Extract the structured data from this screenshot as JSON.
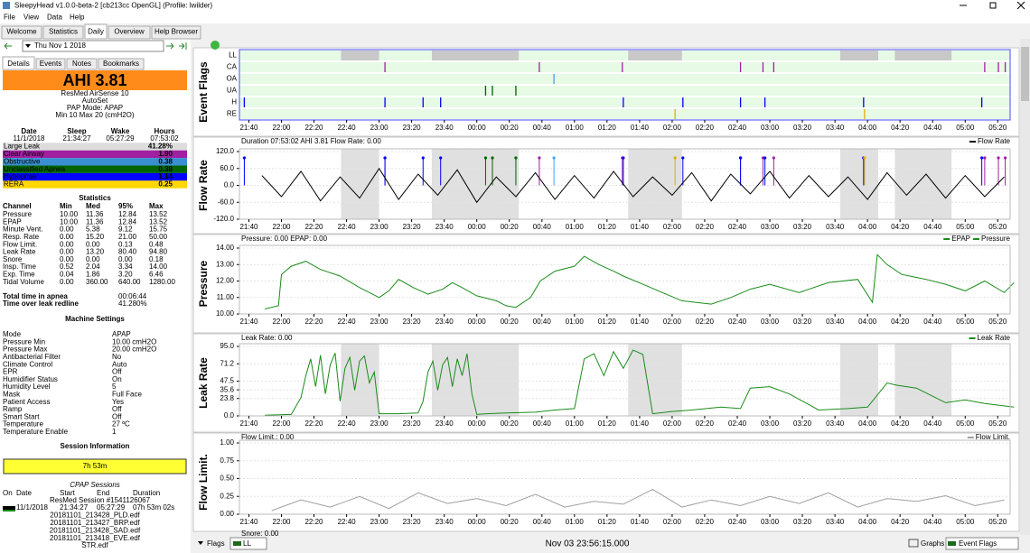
{
  "window": {
    "title": "SleepyHead v1.0.0-beta-2 [cb213cc OpenGL] (Profile: lwilder)",
    "menu": [
      "File",
      "View",
      "Data",
      "Help"
    ],
    "tabs": [
      "Welcome",
      "Statistics",
      "Daily",
      "Overview",
      "Help Browser"
    ]
  },
  "nav": {
    "date": "Thu Nov 1 2018"
  },
  "details": {
    "tabs": [
      "Details",
      "Events",
      "Notes",
      "Bookmarks"
    ],
    "ahi": "AHI 3.81",
    "machine": [
      "ResMed AirSense 10",
      "AutoSet",
      "PAP Mode: APAP",
      "Min 10 Max 20 (cmH2O)"
    ],
    "sleep_table": {
      "header": [
        "Date",
        "Sleep",
        "Wake",
        "Hours"
      ],
      "row": [
        "11/1/2018",
        "21:34:27",
        "05:27:29",
        "07:53:02"
      ]
    },
    "indices": [
      {
        "name": "Large Leak",
        "value": "41.28%",
        "color": "#dcdcdc",
        "text_color": "#000000"
      },
      {
        "name": "Clear Airway",
        "value": "1.90",
        "color": "#a020a0",
        "text_color": "#ffffff"
      },
      {
        "name": "Obstructive",
        "value": "0.38",
        "color": "#3a8fd0",
        "text_color": "#ffffff"
      },
      {
        "name": "Unclassified Apnea",
        "value": "0.38",
        "color": "#006400",
        "text_color": "#ffffff"
      },
      {
        "name": "Hypopnea",
        "value": "1.14",
        "color": "#0000ff",
        "text_color": "#ffffff"
      },
      {
        "name": "RERA",
        "value": "0.25",
        "color": "#ffd700",
        "text_color": "#000000"
      }
    ],
    "statistics": {
      "title": "Statistics",
      "header": [
        "Channel",
        "Min",
        "Med",
        "95%",
        "Max"
      ],
      "rows": [
        [
          "Pressure",
          "10.00",
          "11.36",
          "12.84",
          "13.52"
        ],
        [
          "EPAP",
          "10.00",
          "11.36",
          "12.84",
          "13.52"
        ],
        [
          "Minute Vent.",
          "0.00",
          "5.38",
          "9.12",
          "15.75"
        ],
        [
          "Resp. Rate",
          "0.00",
          "15.20",
          "21.00",
          "50.00"
        ],
        [
          "Flow Limit.",
          "0.00",
          "0.00",
          "0.13",
          "0.48"
        ],
        [
          "Leak Rate",
          "0.00",
          "13.20",
          "80.40",
          "94.80"
        ],
        [
          "Snore",
          "0.00",
          "0.00",
          "0.00",
          "0.18"
        ],
        [
          "Insp. Time",
          "0.52",
          "2.04",
          "3.34",
          "14.00"
        ],
        [
          "Exp. Time",
          "0.04",
          "1.86",
          "3.20",
          "6.46"
        ],
        [
          "Tidal Volume",
          "0.00",
          "360.00",
          "640.00",
          "1280.00"
        ]
      ]
    },
    "totals": [
      [
        "Total time in apnea",
        "00:06:44"
      ],
      [
        "Time over leak redline",
        "41.280%"
      ]
    ],
    "machine_settings": {
      "title": "Machine Settings",
      "rows": [
        [
          "Mode",
          "APAP"
        ],
        [
          "Pressure Min",
          "10.00 cmH2O"
        ],
        [
          "Pressure Max",
          "20.00 cmH2O"
        ],
        [
          "Antibacterial Filter",
          "No"
        ],
        [
          "Climate Control",
          "Auto"
        ],
        [
          "EPR",
          "Off"
        ],
        [
          "Humidifier Status",
          "On"
        ],
        [
          "Humidity Level",
          "5"
        ],
        [
          "Mask",
          "Full Face"
        ],
        [
          "Patient Access",
          "Yes"
        ],
        [
          "Ramp",
          "Off"
        ],
        [
          "Smart Start",
          "Off"
        ],
        [
          "Temperature",
          "27 ºC"
        ],
        [
          "Temperature Enable",
          "1"
        ]
      ]
    },
    "session_info": {
      "title": "Session Information",
      "duration": "7h 53m",
      "cpap_title": "CPAP Sessions",
      "header": [
        "On",
        "Date",
        "Start",
        "End",
        "Duration"
      ],
      "session": "ResMed Session #1541126067",
      "row": [
        "11/1/2018",
        "21:34:27",
        "05:27:29",
        "07h 53m 02s"
      ],
      "files": [
        "20181101_213428_PLD.edf",
        "20181101_213427_BRP.edf",
        "20181101_213428_SAD.edf",
        "20181101_213418_EVE.edf",
        "STR.edf"
      ]
    }
  },
  "time_axis": {
    "xlim": [
      21.57,
      29.46
    ],
    "xticks": [
      {
        "value": 21.667,
        "label": "21:40"
      },
      {
        "value": 22,
        "label": "22:00"
      },
      {
        "value": 22.333,
        "label": "22:20"
      },
      {
        "value": 22.667,
        "label": "22:40"
      },
      {
        "value": 23,
        "label": "23:00"
      },
      {
        "value": 23.333,
        "label": "23:20"
      },
      {
        "value": 23.667,
        "label": "23:40"
      },
      {
        "value": 24,
        "label": "00:00"
      },
      {
        "value": 24.333,
        "label": "00:20"
      },
      {
        "value": 24.667,
        "label": "00:40"
      },
      {
        "value": 25,
        "label": "01:00"
      },
      {
        "value": 25.333,
        "label": "01:20"
      },
      {
        "value": 25.667,
        "label": "01:40"
      },
      {
        "value": 26,
        "label": "02:00"
      },
      {
        "value": 26.333,
        "label": "02:20"
      },
      {
        "value": 26.667,
        "label": "02:40"
      },
      {
        "value": 27,
        "label": "03:00"
      },
      {
        "value": 27.333,
        "label": "03:20"
      },
      {
        "value": 27.667,
        "label": "03:40"
      },
      {
        "value": 28,
        "label": "04:00"
      },
      {
        "value": 28.333,
        "label": "04:20"
      },
      {
        "value": 28.667,
        "label": "04:40"
      },
      {
        "value": 29,
        "label": "05:00"
      },
      {
        "value": 29.333,
        "label": "05:20"
      }
    ]
  },
  "chart_data": [
    {
      "type": "flags",
      "title": "Event Flags",
      "rows": [
        {
          "label": "LL",
          "color": "#c8c8c8",
          "spans": [
            [
              22.61,
              23.0
            ],
            [
              23.54,
              24.43
            ],
            [
              25.55,
              26.1
            ],
            [
              27.72,
              28.11
            ],
            [
              28.28,
              28.86
            ]
          ]
        },
        {
          "label": "CA",
          "color": "#a020a0",
          "events": [
            23.06,
            24.64,
            25.49,
            26.7,
            26.93,
            27.04,
            29.2,
            29.34,
            29.41
          ]
        },
        {
          "label": "OA",
          "color": "#40a0ff",
          "events": [
            24.79
          ]
        },
        {
          "label": "UA",
          "color": "#006400",
          "events": [
            24.09,
            24.16,
            24.4
          ]
        },
        {
          "label": "H",
          "color": "#0000ff",
          "events": [
            21.62,
            23.06,
            23.45,
            23.63,
            25.5,
            26.11,
            26.7,
            26.95,
            27.96,
            29.17
          ]
        },
        {
          "label": "RE",
          "color": "#e0b000",
          "events": [
            26.03,
            27.97
          ]
        }
      ]
    },
    {
      "type": "line",
      "title": "Flow Rate",
      "header": "Duration 07:53:02 AHI 3.81 Flow Rate: 0.00",
      "legend": [
        "Flow Rate"
      ],
      "ylim": [
        -120,
        120
      ],
      "yticks": [
        {
          "value": 120,
          "label": "120.0"
        },
        {
          "value": 60,
          "label": "60.0"
        },
        {
          "value": 0,
          "label": "0.0"
        },
        {
          "value": -60,
          "label": "-60.0"
        },
        {
          "value": -120,
          "label": "-120.0"
        }
      ],
      "shaded": true,
      "flag_markers": true,
      "series": [
        {
          "color": "#000000",
          "x": [
            21.8,
            22.0,
            22.2,
            22.4,
            22.6,
            22.8,
            23.0,
            23.2,
            23.4,
            23.6,
            23.8,
            24.0,
            24.2,
            24.4,
            24.6,
            24.8,
            25.0,
            25.2,
            25.4,
            25.6,
            25.8,
            26.0,
            26.2,
            26.4,
            26.6,
            26.8,
            27.0,
            27.2,
            27.4,
            27.6,
            27.8,
            28.0,
            28.2,
            28.4,
            28.6,
            28.8,
            29.0,
            29.2,
            29.4
          ],
          "values": [
            35,
            -40,
            50,
            -55,
            30,
            -45,
            60,
            -50,
            40,
            -35,
            55,
            -60,
            30,
            -40,
            45,
            -50,
            35,
            -45,
            50,
            -40,
            30,
            -35,
            45,
            -55,
            40,
            -30,
            50,
            -45,
            35,
            -40,
            30,
            -50,
            45,
            -35,
            40,
            -45,
            35,
            -40,
            30
          ]
        }
      ]
    },
    {
      "type": "line",
      "title": "Pressure",
      "header": "Pressure: 0.00 EPAP: 0.00",
      "legend": [
        "EPAP",
        "Pressure"
      ],
      "ylim": [
        10,
        14
      ],
      "yticks": [
        {
          "value": 10,
          "label": "10.00"
        },
        {
          "value": 11,
          "label": "11.00"
        },
        {
          "value": 12,
          "label": "12.00"
        },
        {
          "value": 13,
          "label": "13.00"
        },
        {
          "value": 14,
          "label": "14.00"
        }
      ],
      "series": [
        {
          "color": "#1a8c1a",
          "x": [
            21.83,
            21.97,
            22.0,
            22.1,
            22.25,
            22.4,
            22.6,
            22.8,
            23.0,
            23.1,
            23.2,
            23.35,
            23.5,
            23.65,
            23.75,
            23.85,
            24.0,
            24.2,
            24.3,
            24.4,
            24.55,
            24.65,
            24.8,
            25.0,
            25.1,
            25.25,
            25.4,
            25.5,
            25.7,
            25.9,
            26.1,
            26.4,
            26.6,
            26.8,
            27.0,
            27.3,
            27.6,
            27.9,
            28.05,
            28.1,
            28.2,
            28.35,
            28.6,
            28.8,
            29.0,
            29.2,
            29.4,
            29.5
          ],
          "values": [
            10.3,
            10.5,
            12.4,
            12.9,
            13.2,
            12.7,
            12.3,
            11.6,
            11.0,
            11.4,
            12.1,
            11.6,
            11.2,
            11.5,
            11.9,
            11.6,
            11.1,
            10.8,
            10.5,
            10.4,
            11.0,
            12.0,
            12.6,
            12.9,
            13.5,
            13.0,
            12.6,
            12.3,
            11.8,
            11.3,
            10.8,
            10.6,
            11.0,
            11.5,
            11.8,
            11.3,
            11.9,
            12.1,
            10.7,
            13.6,
            13.0,
            12.4,
            12.1,
            11.8,
            11.4,
            12.0,
            11.3,
            11.9
          ]
        }
      ]
    },
    {
      "type": "line",
      "title": "Leak Rate",
      "header": "Leak Rate: 0.00",
      "legend": [
        "Leak Rate"
      ],
      "ylim": [
        0,
        95
      ],
      "yticks": [
        {
          "value": 0,
          "label": "0.0"
        },
        23.8,
        35.6,
        47.5,
        71.2,
        {
          "value": 95,
          "label": "95.0"
        }
      ],
      "shaded": true,
      "series": [
        {
          "color": "#1a8c1a",
          "x": [
            21.83,
            22.1,
            22.2,
            22.25,
            22.3,
            22.35,
            22.4,
            22.45,
            22.5,
            22.55,
            22.6,
            22.65,
            22.7,
            22.75,
            22.8,
            22.85,
            22.9,
            22.95,
            23.0,
            23.2,
            23.4,
            23.45,
            23.5,
            23.55,
            23.6,
            23.65,
            23.7,
            23.75,
            23.8,
            23.85,
            23.9,
            23.95,
            24.0,
            24.1,
            24.3,
            24.6,
            24.8,
            25.0,
            25.1,
            25.2,
            25.3,
            25.4,
            25.5,
            25.6,
            25.7,
            25.8,
            26.0,
            26.2,
            26.5,
            26.7,
            26.8,
            27.0,
            27.2,
            27.5,
            27.8,
            28.0,
            28.2,
            28.3,
            28.5,
            28.8,
            29.0,
            29.2,
            29.5
          ],
          "values": [
            1,
            2,
            25,
            55,
            78,
            40,
            83,
            30,
            70,
            86,
            20,
            65,
            80,
            35,
            75,
            82,
            45,
            60,
            3,
            3,
            4,
            20,
            60,
            75,
            35,
            70,
            80,
            40,
            78,
            55,
            85,
            30,
            2,
            3,
            4,
            5,
            8,
            10,
            78,
            85,
            55,
            88,
            65,
            90,
            84,
            3,
            6,
            8,
            12,
            10,
            38,
            40,
            30,
            8,
            10,
            12,
            45,
            42,
            38,
            18,
            22,
            17,
            12
          ]
        }
      ]
    },
    {
      "type": "line",
      "title": "Flow Limit.",
      "header": "Flow Limit.: 0.00",
      "legend": [
        "Flow Limit."
      ],
      "ylim": [
        0,
        1
      ],
      "yticks": [
        {
          "value": 0,
          "label": "0.00"
        },
        0.25,
        {
          "value": 0.5,
          "label": "0.50"
        },
        0.75,
        {
          "value": 1,
          "label": "1.00"
        }
      ],
      "series": [
        {
          "color": "#a0a0a0",
          "x": [
            21.9,
            22.2,
            22.5,
            22.8,
            23.1,
            23.4,
            23.7,
            24.0,
            24.3,
            24.6,
            24.9,
            25.2,
            25.5,
            25.8,
            26.1,
            26.4,
            26.7,
            27.0,
            27.3,
            27.6,
            27.9,
            28.2,
            28.5,
            28.8,
            29.1,
            29.4
          ],
          "values": [
            0.05,
            0.2,
            0.1,
            0.25,
            0.08,
            0.3,
            0.15,
            0.22,
            0.12,
            0.28,
            0.1,
            0.18,
            0.14,
            0.35,
            0.1,
            0.2,
            0.12,
            0.25,
            0.15,
            0.3,
            0.1,
            0.22,
            0.18,
            0.26,
            0.12,
            0.2
          ]
        }
      ]
    }
  ],
  "footer": {
    "partial_graph": "Snore: 0.00",
    "flags_button": "Flags",
    "flags_select": "LL",
    "time": "Nov 03 23:56:15.000",
    "graphs_button": "Graphs",
    "graphs_select": "Event Flags"
  }
}
